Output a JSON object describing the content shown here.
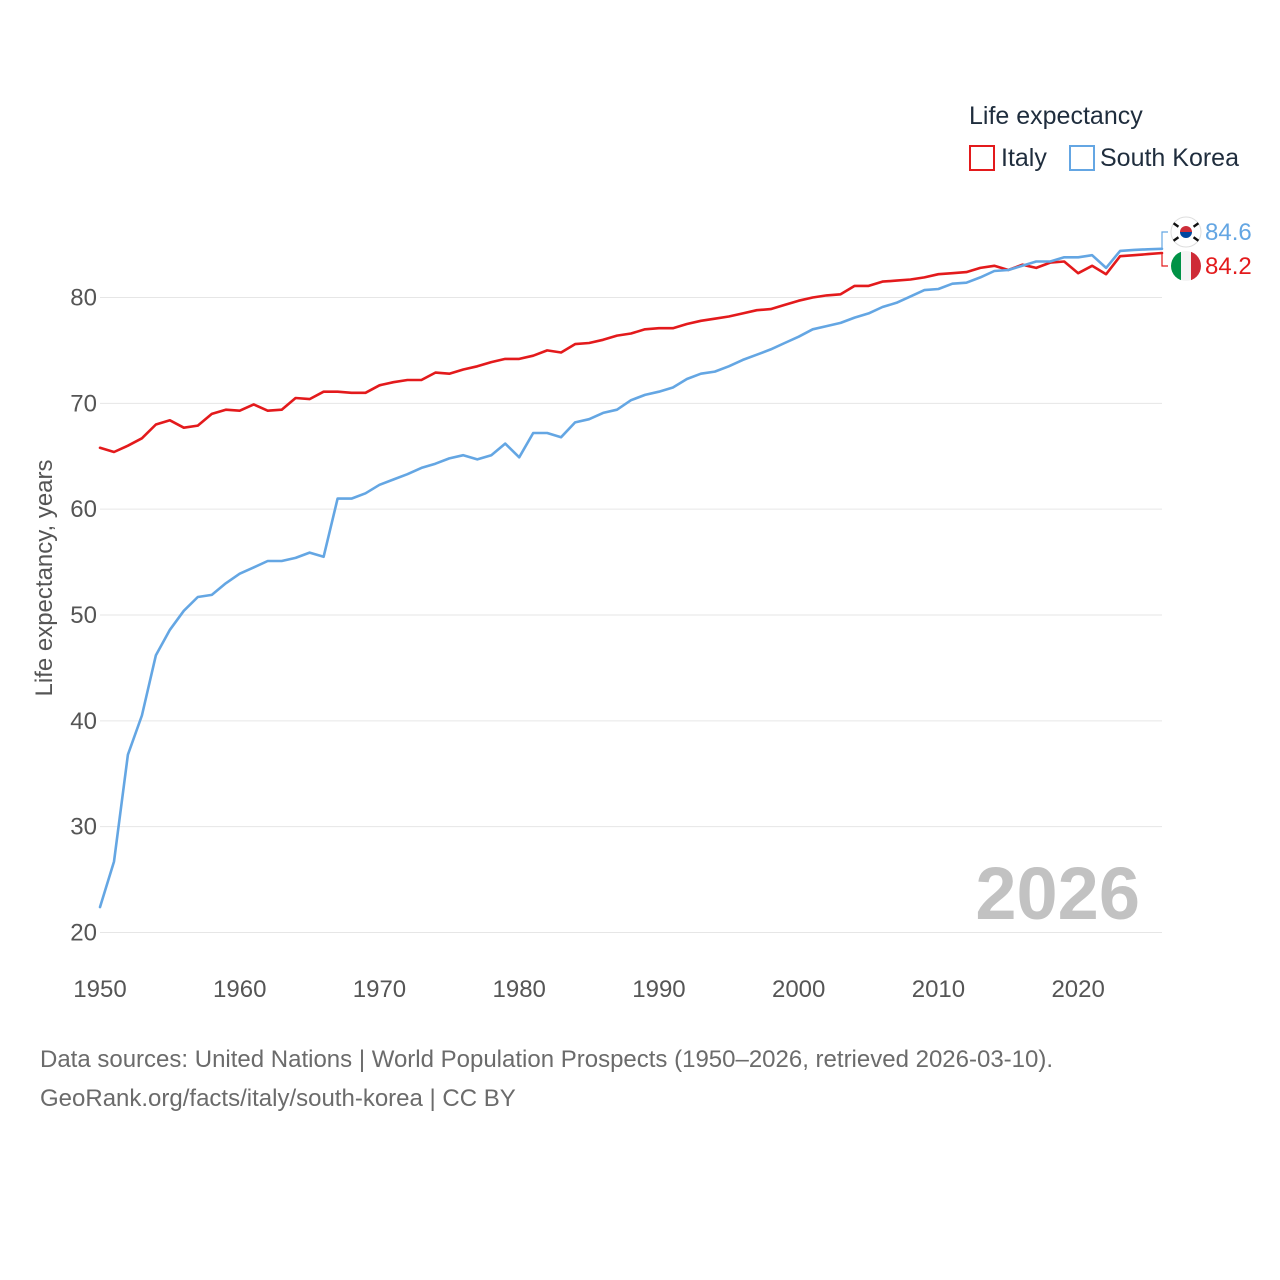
{
  "chart_data": {
    "type": "line",
    "title": "",
    "legend_title": "Life expectancy",
    "legend_position": "top-right",
    "xlabel": "",
    "ylabel": "Life expectancy, years",
    "xlim": [
      1950,
      2026
    ],
    "ylim": [
      20,
      90
    ],
    "x_ticks": [
      1950,
      1960,
      1970,
      1980,
      1990,
      2000,
      2010,
      2020
    ],
    "x_tick_labels": [
      "1950",
      "1960",
      "1970",
      "1980",
      "1990",
      "2000",
      "2010",
      "2020"
    ],
    "y_ticks": [
      20,
      30,
      40,
      50,
      60,
      70,
      80
    ],
    "y_tick_labels": [
      "20",
      "30",
      "40",
      "50",
      "60",
      "70",
      "80"
    ],
    "year_label": "2026",
    "x": [
      1950,
      1951,
      1952,
      1953,
      1954,
      1955,
      1956,
      1957,
      1958,
      1959,
      1960,
      1961,
      1962,
      1963,
      1964,
      1965,
      1966,
      1967,
      1968,
      1969,
      1970,
      1971,
      1972,
      1973,
      1974,
      1975,
      1976,
      1977,
      1978,
      1979,
      1980,
      1981,
      1982,
      1983,
      1984,
      1985,
      1986,
      1987,
      1988,
      1989,
      1990,
      1991,
      1992,
      1993,
      1994,
      1995,
      1996,
      1997,
      1998,
      1999,
      2000,
      2001,
      2002,
      2003,
      2004,
      2005,
      2006,
      2007,
      2008,
      2009,
      2010,
      2011,
      2012,
      2013,
      2014,
      2015,
      2016,
      2017,
      2018,
      2019,
      2020,
      2021,
      2022,
      2023,
      2024,
      2025,
      2026
    ],
    "series": [
      {
        "name": "Italy",
        "color": "#e31a1c",
        "end_label": "84.2",
        "flag": "italy-flag-icon",
        "values": [
          65.8,
          65.4,
          66.0,
          66.7,
          68.0,
          68.4,
          67.7,
          67.9,
          69.0,
          69.4,
          69.3,
          69.9,
          69.3,
          69.4,
          70.5,
          70.4,
          71.1,
          71.1,
          71.0,
          71.0,
          71.7,
          72.0,
          72.2,
          72.2,
          72.9,
          72.8,
          73.2,
          73.5,
          73.9,
          74.2,
          74.2,
          74.5,
          75.0,
          74.8,
          75.6,
          75.7,
          76.0,
          76.4,
          76.6,
          77.0,
          77.1,
          77.1,
          77.5,
          77.8,
          78.0,
          78.2,
          78.5,
          78.8,
          78.9,
          79.3,
          79.7,
          80.0,
          80.2,
          80.3,
          81.1,
          81.1,
          81.5,
          81.6,
          81.7,
          81.9,
          82.2,
          82.3,
          82.4,
          82.8,
          83.0,
          82.6,
          83.1,
          82.8,
          83.3,
          83.4,
          82.3,
          83.0,
          82.2,
          83.9,
          84.0,
          84.1,
          84.2
        ]
      },
      {
        "name": "South Korea",
        "color": "#64a6e3",
        "end_label": "84.6",
        "flag": "south-korea-flag-icon",
        "values": [
          22.4,
          26.7,
          36.8,
          40.5,
          46.2,
          48.6,
          50.4,
          51.7,
          51.9,
          53.0,
          53.9,
          54.5,
          55.1,
          55.1,
          55.4,
          55.9,
          55.5,
          61.0,
          61.0,
          61.5,
          62.3,
          62.8,
          63.3,
          63.9,
          64.3,
          64.8,
          65.1,
          64.7,
          65.1,
          66.2,
          64.9,
          67.2,
          67.2,
          66.8,
          68.2,
          68.5,
          69.1,
          69.4,
          70.3,
          70.8,
          71.1,
          71.5,
          72.3,
          72.8,
          73.0,
          73.5,
          74.1,
          74.6,
          75.1,
          75.7,
          76.3,
          77.0,
          77.3,
          77.6,
          78.1,
          78.5,
          79.1,
          79.5,
          80.1,
          80.7,
          80.8,
          81.3,
          81.4,
          81.9,
          82.5,
          82.6,
          83.0,
          83.4,
          83.4,
          83.8,
          83.8,
          84.0,
          82.8,
          84.4,
          84.5,
          84.55,
          84.6
        ]
      }
    ]
  },
  "footer": {
    "sources": "Data sources: United Nations | World Population Prospects (1950–2026, retrieved 2026-03-10).",
    "credit": "GeoRank.org/facts/italy/south-korea | CC BY"
  }
}
